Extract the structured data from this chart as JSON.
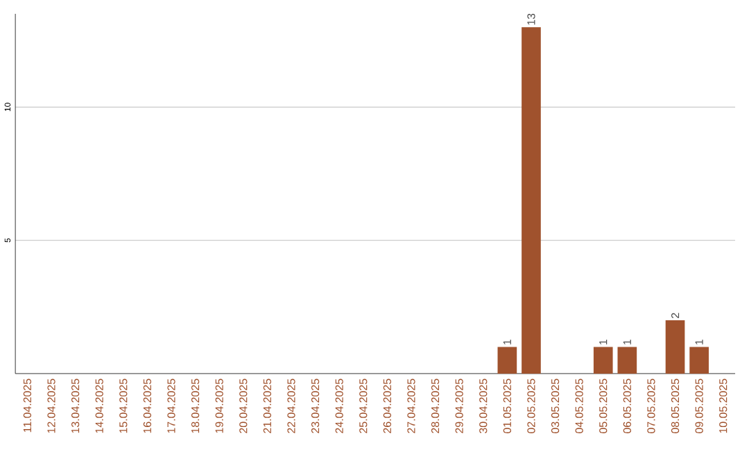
{
  "chart_data": {
    "type": "bar",
    "categories": [
      "11.04.2025",
      "12.04.2025",
      "13.04.2025",
      "14.04.2025",
      "15.04.2025",
      "16.04.2025",
      "17.04.2025",
      "18.04.2025",
      "19.04.2025",
      "20.04.2025",
      "21.04.2025",
      "22.04.2025",
      "23.04.2025",
      "24.04.2025",
      "25.04.2025",
      "26.04.2025",
      "27.04.2025",
      "28.04.2025",
      "29.04.2025",
      "30.04.2025",
      "01.05.2025",
      "02.05.2025",
      "03.05.2025",
      "04.05.2025",
      "05.05.2025",
      "06.05.2025",
      "07.05.2025",
      "08.05.2025",
      "09.05.2025",
      "10.05.2025"
    ],
    "values": [
      0,
      0,
      0,
      0,
      0,
      0,
      0,
      0,
      0,
      0,
      0,
      0,
      0,
      0,
      0,
      0,
      0,
      0,
      0,
      0,
      1,
      13,
      0,
      0,
      1,
      1,
      0,
      2,
      1,
      0
    ],
    "value_labels": [
      null,
      null,
      null,
      null,
      null,
      null,
      null,
      null,
      null,
      null,
      null,
      null,
      null,
      null,
      null,
      null,
      null,
      null,
      null,
      null,
      "1",
      "13",
      null,
      null,
      "1",
      "1",
      null,
      "2",
      "1",
      null
    ],
    "color": "#a0522d",
    "ylim": [
      0,
      13.5
    ],
    "yticks": [
      5,
      10
    ],
    "grid": "y"
  }
}
